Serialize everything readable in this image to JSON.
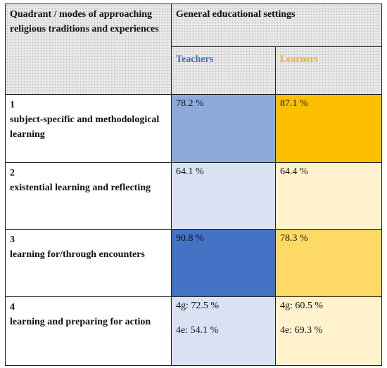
{
  "header": {
    "quadrant_label": "Quadrant / modes of approaching religious traditions and experiences",
    "settings_label": "General educational settings",
    "teachers_label": "Teachers",
    "learners_label": "Learners"
  },
  "colors": {
    "teachers_header": "#3e6cb5",
    "learners_header": "#f3b21a",
    "t1": "#8eaadc",
    "l1": "#fdbf00",
    "t2": "#d9e2f3",
    "l2": "#fff2cc",
    "t3": "#4472c4",
    "l3": "#ffd966",
    "t4": "#d9e2f3",
    "l4": "#fff2cc"
  },
  "rows": [
    {
      "number": "1",
      "label": "subject-specific and methodological learning",
      "teachers": "78.2 %",
      "learners": "87.1 %"
    },
    {
      "number": "2",
      "label": "existential learning and reflecting",
      "teachers": "64.1 %",
      "learners": "64.4 %"
    },
    {
      "number": "3",
      "label": "learning for/through encounters",
      "teachers": "90.8 %",
      "learners": "78.3 %"
    },
    {
      "number": "4",
      "label": "learning and preparing for action",
      "teachers_4g": "4g: 72.5 %",
      "teachers_4e": "4e: 54.1 %",
      "learners_4g": "4g: 60.5 %",
      "learners_4e": "4e: 69.3 %"
    }
  ]
}
